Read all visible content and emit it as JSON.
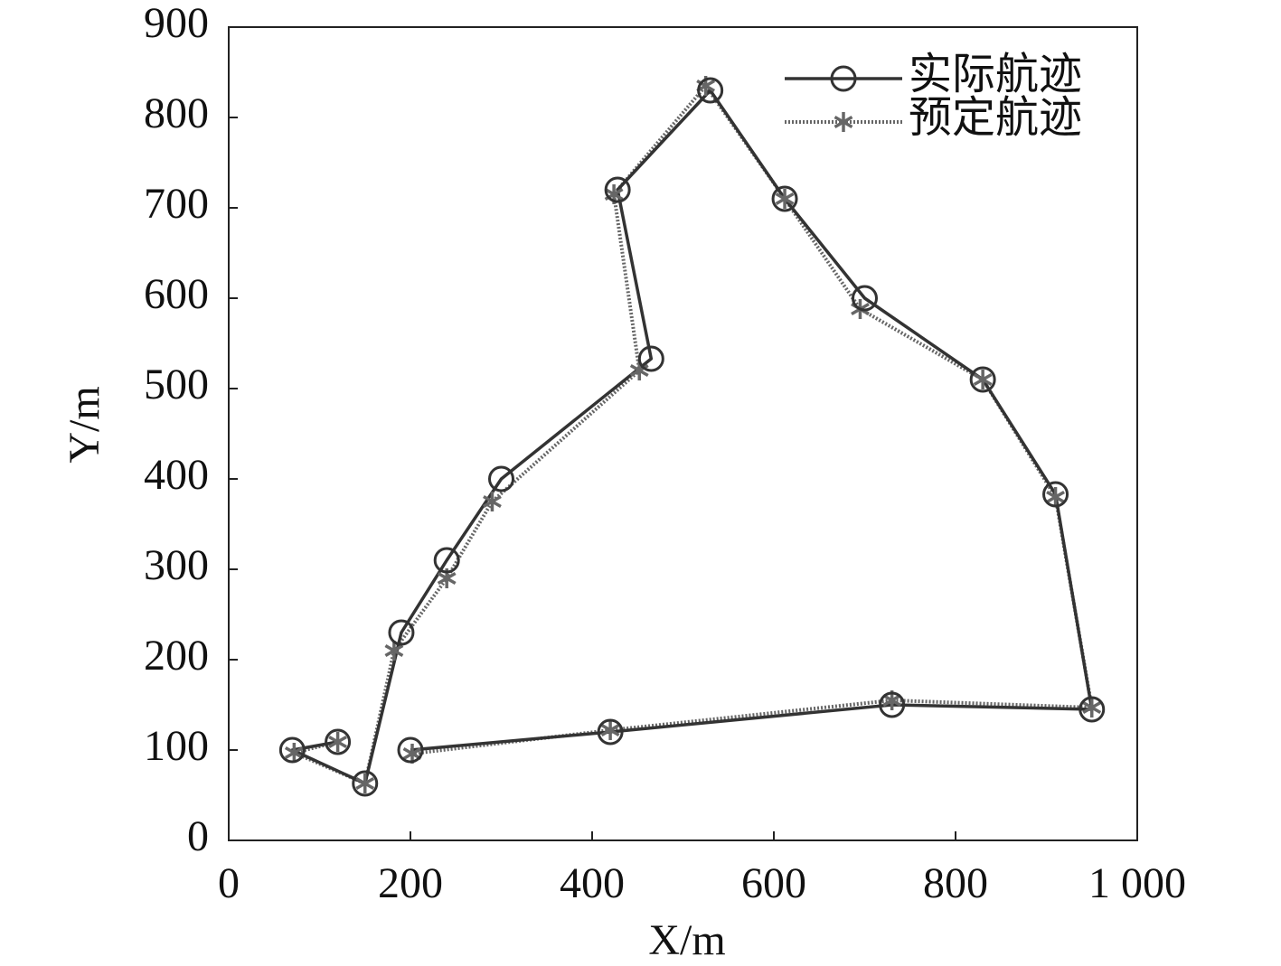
{
  "chart_data": {
    "type": "line",
    "xlabel": "X/m",
    "ylabel": "Y/m",
    "xlim": [
      0,
      1000
    ],
    "ylim": [
      0,
      900
    ],
    "xticks": [
      0,
      200,
      400,
      600,
      800,
      {
        "value": 1000,
        "label": "1 000"
      }
    ],
    "yticks": [
      0,
      100,
      200,
      300,
      400,
      500,
      600,
      700,
      800,
      900
    ],
    "legend": "upper right",
    "series": [
      {
        "name": "实际航迹",
        "color": "#333333",
        "marker": "circle",
        "style": "solid",
        "x": [
          120,
          70,
          150,
          190,
          240,
          300,
          465,
          428,
          530,
          612,
          700,
          830,
          910,
          950,
          730,
          420,
          200
        ],
        "values": [
          109,
          100,
          63,
          230,
          310,
          400,
          533,
          720,
          830,
          710,
          600,
          510,
          383,
          145,
          150,
          120,
          100
        ]
      },
      {
        "name": "预定航迹",
        "color": "#666666",
        "marker": "star",
        "style": "dotted",
        "x": [
          120,
          72,
          150,
          182,
          240,
          290,
          452,
          424,
          525,
          612,
          695,
          830,
          910,
          950,
          730,
          420,
          202
        ],
        "values": [
          109,
          97,
          63,
          210,
          290,
          375,
          520,
          715,
          835,
          710,
          588,
          510,
          380,
          147,
          155,
          122,
          96
        ]
      }
    ]
  }
}
